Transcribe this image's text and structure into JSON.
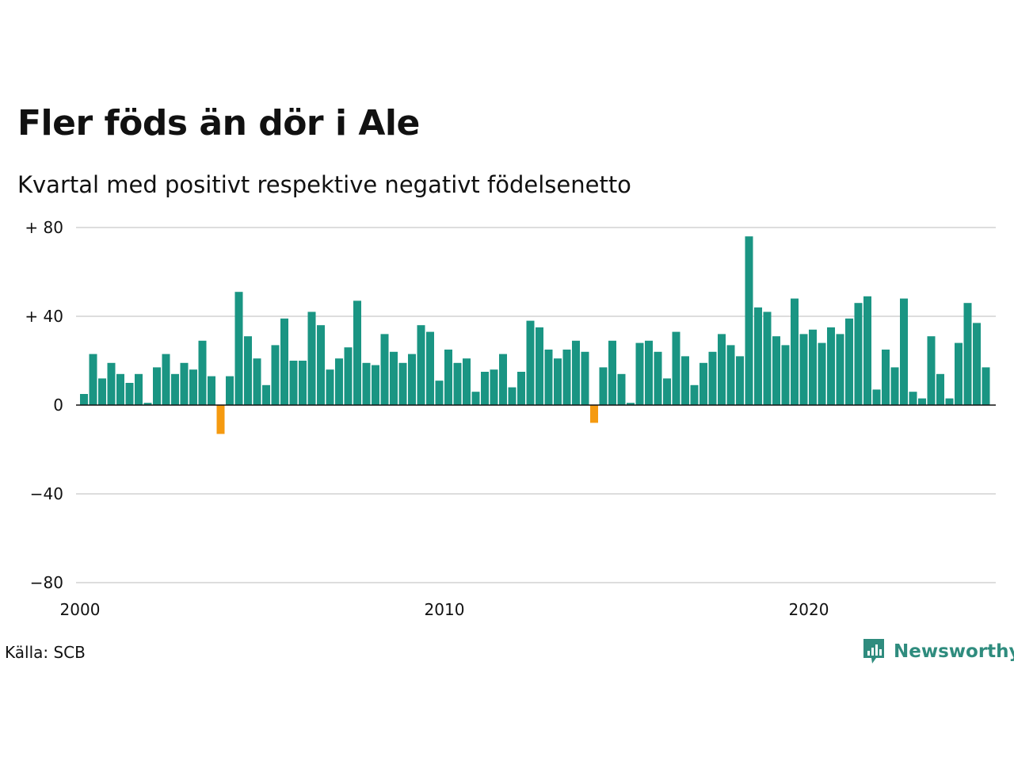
{
  "title": "Fler föds än dör i Ale",
  "subtitle": "Kvartal med positivt respektive negativt födelsenetto",
  "source": "Källa: SCB",
  "logo": {
    "text": "Newsworthy",
    "icon": "newsworthy-chat-bars-icon"
  },
  "colors": {
    "positive": "#1a9583",
    "negative": "#f59a10",
    "grid": "#dddddd",
    "baseline": "#111111",
    "brand": "#2f8c7e"
  },
  "chart_data": {
    "type": "bar",
    "x_start": 2000,
    "periods_per_year": 4,
    "ylim": [
      -80,
      80
    ],
    "yticks": [
      {
        "value": 80,
        "label": "+ 80"
      },
      {
        "value": 40,
        "label": "+ 40"
      },
      {
        "value": 0,
        "label": "0"
      },
      {
        "value": -40,
        "label": "−40"
      },
      {
        "value": -80,
        "label": "−80"
      }
    ],
    "xticks": [
      {
        "value": 2000,
        "label": "2000"
      },
      {
        "value": 2010,
        "label": "2010"
      },
      {
        "value": 2020,
        "label": "2020"
      }
    ],
    "grid": true,
    "legend": "none",
    "values": [
      5,
      23,
      12,
      19,
      14,
      10,
      14,
      1,
      17,
      23,
      14,
      19,
      16,
      29,
      13,
      -13,
      13,
      51,
      31,
      21,
      9,
      27,
      39,
      20,
      20,
      42,
      36,
      16,
      21,
      26,
      47,
      19,
      18,
      32,
      24,
      19,
      23,
      36,
      33,
      11,
      25,
      19,
      21,
      6,
      15,
      16,
      23,
      8,
      15,
      38,
      35,
      25,
      21,
      25,
      29,
      24,
      -8,
      17,
      29,
      14,
      1,
      28,
      29,
      24,
      12,
      33,
      22,
      9,
      19,
      24,
      32,
      27,
      22,
      76,
      44,
      42,
      31,
      27,
      48,
      32,
      34,
      28,
      35,
      32,
      39,
      46,
      49,
      7,
      25,
      17,
      48,
      6,
      3,
      31,
      14,
      3,
      28,
      46,
      37,
      17
    ]
  }
}
